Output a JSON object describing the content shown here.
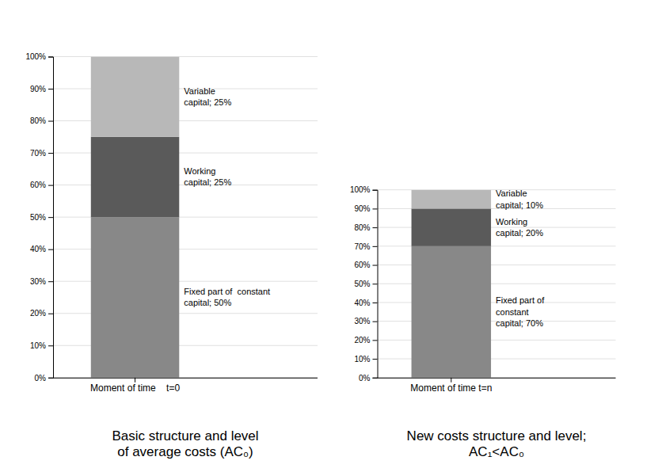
{
  "chart_data": [
    {
      "type": "bar",
      "stacked": true,
      "title": "Basic structure and level\nof average costs (AC₀)",
      "categories": [
        "Moment of time    t=0"
      ],
      "series": [
        {
          "name": "Fixed part of  constant\ncapital; 50%",
          "color": "#888888",
          "values": [
            50
          ]
        },
        {
          "name": "Working\ncapital; 25%",
          "color": "#5a5a5a",
          "values": [
            25
          ]
        },
        {
          "name": "Variable\ncapital; 25%",
          "color": "#b8b8b8",
          "values": [
            25
          ]
        }
      ],
      "ylim": [
        0,
        100
      ],
      "yticks": [
        {
          "value": 0,
          "label": "0%"
        },
        {
          "value": 10,
          "label": "10%"
        },
        {
          "value": 20,
          "label": "20%"
        },
        {
          "value": 30,
          "label": "30%"
        },
        {
          "value": 40,
          "label": "40%"
        },
        {
          "value": 50,
          "label": "50%"
        },
        {
          "value": 60,
          "label": "60%"
        },
        {
          "value": 70,
          "label": "70%"
        },
        {
          "value": 80,
          "label": "80%"
        },
        {
          "value": 90,
          "label": "90%"
        },
        {
          "value": 100,
          "label": "100%"
        }
      ],
      "grid": true
    },
    {
      "type": "bar",
      "stacked": true,
      "title": "New costs structure and level;\nAC₁<AC₀",
      "categories": [
        "Moment of time t=n"
      ],
      "series": [
        {
          "name": "Fixed part of\nconstant\ncapital; 70%",
          "color": "#888888",
          "values": [
            70
          ]
        },
        {
          "name": "Working\ncapital; 20%",
          "color": "#5a5a5a",
          "values": [
            20
          ]
        },
        {
          "name": "Variable\ncapital; 10%",
          "color": "#b8b8b8",
          "values": [
            10
          ]
        }
      ],
      "ylim": [
        0,
        100
      ],
      "yticks": [
        {
          "value": 0,
          "label": "0%"
        },
        {
          "value": 10,
          "label": "10%"
        },
        {
          "value": 20,
          "label": "20%"
        },
        {
          "value": 30,
          "label": "30%"
        },
        {
          "value": 40,
          "label": "40%"
        },
        {
          "value": 50,
          "label": "50%"
        },
        {
          "value": 60,
          "label": "60%"
        },
        {
          "value": 70,
          "label": "70%"
        },
        {
          "value": 80,
          "label": "80%"
        },
        {
          "value": 90,
          "label": "90%"
        },
        {
          "value": 100,
          "label": "100%"
        }
      ],
      "grid": true
    }
  ]
}
